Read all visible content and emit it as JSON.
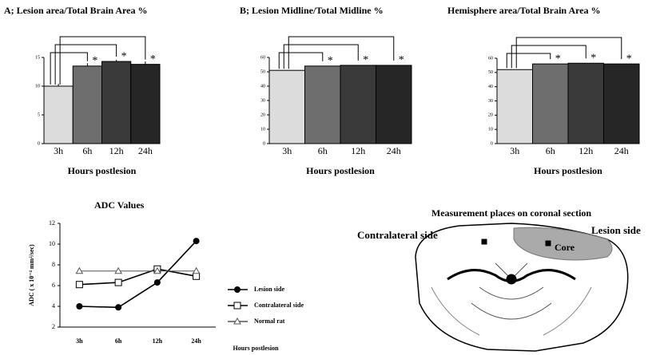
{
  "chart_data": [
    {
      "type": "bar",
      "title": "A; Lesion area/Total Brain Area %",
      "x_label": "Hours postlesion",
      "categories": [
        "3h",
        "6h",
        "12h",
        "24h"
      ],
      "values": [
        10,
        13.5,
        14.3,
        13.8
      ],
      "errors": [
        0.4,
        0.5,
        0.3,
        0.5
      ],
      "colors": [
        "#dcdcdc",
        "#6e6e6e",
        "#3a3a3a",
        "#262626"
      ],
      "ylim": [
        0,
        15
      ],
      "yticks": [
        0,
        5,
        10,
        15
      ],
      "significance": [
        "*",
        "*",
        "*"
      ]
    },
    {
      "type": "bar",
      "title": "B; Lesion Midline/Total Midline %",
      "x_label": "Hours postlesion",
      "categories": [
        "3h",
        "6h",
        "12h",
        "24h"
      ],
      "values": [
        51,
        54,
        54.5,
        54.5
      ],
      "colors": [
        "#dcdcdc",
        "#6e6e6e",
        "#3a3a3a",
        "#262626"
      ],
      "ylim": [
        0,
        60
      ],
      "yticks": [
        0,
        10,
        20,
        30,
        40,
        50,
        60
      ],
      "significance": [
        "*",
        "*",
        "*"
      ]
    },
    {
      "type": "bar",
      "title": "Hemisphere area/Total Brain Area %",
      "x_label": "Hours postlesion",
      "categories": [
        "3h",
        "6h",
        "12h",
        "24h"
      ],
      "values": [
        52,
        56,
        56.5,
        56
      ],
      "colors": [
        "#dcdcdc",
        "#6e6e6e",
        "#3a3a3a",
        "#262626"
      ],
      "ylim": [
        0,
        60
      ],
      "yticks": [
        0,
        10,
        20,
        30,
        40,
        50,
        60
      ],
      "significance": [
        "*",
        "*",
        "*"
      ]
    },
    {
      "type": "line",
      "title": "ADC Values",
      "x_label": "Hours postlesion",
      "y_label": "ADC ( x 10⁻⁴ mm²/sec)",
      "categories": [
        "3h",
        "6h",
        "12h",
        "24h"
      ],
      "ylim": [
        2,
        12
      ],
      "yticks": [
        2,
        4,
        6,
        8,
        10,
        12
      ],
      "series": [
        {
          "name": "Lesion side",
          "marker": "circle",
          "color": "#000000",
          "values": [
            4,
            3.9,
            6.3,
            10.3
          ]
        },
        {
          "name": "Contralateral side",
          "marker": "square",
          "color": "#000000",
          "values": [
            6.1,
            6.3,
            7.6,
            6.9
          ]
        },
        {
          "name": "Normal rat",
          "marker": "triangle",
          "color": "#555555",
          "values": [
            7.4,
            7.4,
            7.4,
            7.4
          ]
        }
      ]
    }
  ],
  "diagram": {
    "title": "Measurement places on coronal section",
    "left_label": "Contralateral side",
    "right_label": "Lesion side",
    "core_label": "Core"
  }
}
